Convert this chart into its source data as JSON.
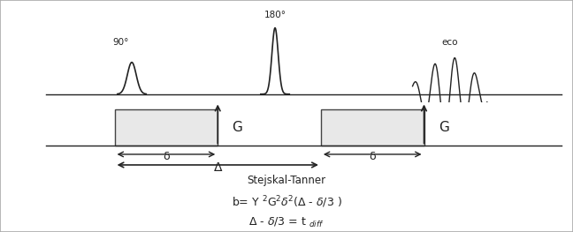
{
  "fig_width": 6.48,
  "fig_height": 2.63,
  "dpi": 100,
  "bg_color": "#ffffff",
  "border_color": "#aaaaaa",
  "line_color": "#222222",
  "grad_rect_color": "#e8e8e8",
  "grad_rect_edge": "#444444",
  "arrow_color": "#222222",
  "text_color": "#222222",
  "title_text": "Stejskal-Tanner",
  "formula1": "b= Y $^2$G$^2$\\delta$^2$(\\Delta - \\delta/3 )",
  "formula2": "\\Delta - \\delta/3 = t $_{diff}$"
}
